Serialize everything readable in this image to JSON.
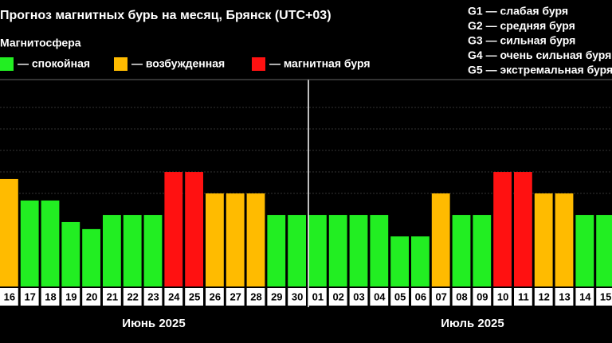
{
  "chart_data": {
    "type": "bar",
    "title": "Прогноз магнитных бурь на месяц, Брянск (UTC+03)",
    "legend_title": "Магнитосфера",
    "legend": [
      {
        "name": "— спокойная",
        "color": "#22ee22"
      },
      {
        "name": "— возбужденная",
        "color": "#ffbb00"
      },
      {
        "name": "— магнитная буря",
        "color": "#ff1111"
      }
    ],
    "storm_levels": [
      "G1 — слабая буря",
      "G2 — средняя буря",
      "G3 — сильная буря",
      "G4 — очень сильная буря",
      "G5 — экстремальная буря"
    ],
    "months": [
      "Июнь 2025",
      "Июль 2025"
    ],
    "categories": [
      "16",
      "17",
      "18",
      "19",
      "20",
      "21",
      "22",
      "23",
      "24",
      "25",
      "26",
      "27",
      "28",
      "29",
      "30",
      "01",
      "02",
      "03",
      "04",
      "05",
      "06",
      "07",
      "08",
      "09",
      "10",
      "11",
      "12",
      "13",
      "14",
      "15"
    ],
    "values": [
      5,
      4,
      4,
      3,
      2.67,
      3.33,
      3.33,
      3.33,
      5.33,
      5.33,
      4.33,
      4.33,
      4.33,
      3.33,
      3.33,
      3.33,
      3.33,
      3.33,
      3.33,
      2.33,
      2.33,
      4.33,
      3.33,
      3.33,
      5.33,
      5.33,
      4.33,
      4.33,
      3.33,
      3.33
    ],
    "colors": [
      "#ffbb00",
      "#22ee22",
      "#22ee22",
      "#22ee22",
      "#22ee22",
      "#22ee22",
      "#22ee22",
      "#22ee22",
      "#ff1111",
      "#ff1111",
      "#ffbb00",
      "#ffbb00",
      "#ffbb00",
      "#22ee22",
      "#22ee22",
      "#22ee22",
      "#22ee22",
      "#22ee22",
      "#22ee22",
      "#22ee22",
      "#22ee22",
      "#ffbb00",
      "#22ee22",
      "#22ee22",
      "#ff1111",
      "#ff1111",
      "#ffbb00",
      "#ffbb00",
      "#22ee22",
      "#22ee22"
    ],
    "ylim": [
      0,
      9.33
    ]
  }
}
